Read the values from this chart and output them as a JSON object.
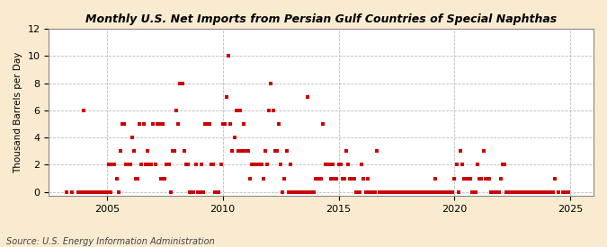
{
  "title": "Monthly U.S. Net Imports from Persian Gulf Countries of Special Naphthas",
  "ylabel": "Thousand Barrels per Day",
  "source": "Source: U.S. Energy Information Administration",
  "background_color": "#faebd0",
  "plot_background_color": "#ffffff",
  "marker_color": "#cc0000",
  "xlim": [
    2002.5,
    2026.0
  ],
  "ylim": [
    -0.3,
    12
  ],
  "yticks": [
    0,
    2,
    4,
    6,
    8,
    10,
    12
  ],
  "xticks": [
    2005,
    2010,
    2015,
    2020,
    2025
  ],
  "data_points": [
    [
      2003.25,
      0
    ],
    [
      2003.5,
      0
    ],
    [
      2003.75,
      0
    ],
    [
      2003.917,
      0
    ],
    [
      2004.0,
      6
    ],
    [
      2004.083,
      0
    ],
    [
      2004.167,
      0
    ],
    [
      2004.25,
      0
    ],
    [
      2004.333,
      0
    ],
    [
      2004.417,
      0
    ],
    [
      2004.5,
      0
    ],
    [
      2004.583,
      0
    ],
    [
      2004.667,
      0
    ],
    [
      2004.75,
      0
    ],
    [
      2004.833,
      0
    ],
    [
      2004.917,
      0
    ],
    [
      2005.0,
      0
    ],
    [
      2005.083,
      2
    ],
    [
      2005.167,
      0
    ],
    [
      2005.25,
      2
    ],
    [
      2005.333,
      2
    ],
    [
      2005.417,
      1
    ],
    [
      2005.5,
      0
    ],
    [
      2005.583,
      3
    ],
    [
      2005.667,
      5
    ],
    [
      2005.75,
      5
    ],
    [
      2005.833,
      2
    ],
    [
      2005.917,
      2
    ],
    [
      2006.0,
      2
    ],
    [
      2006.083,
      4
    ],
    [
      2006.167,
      3
    ],
    [
      2006.25,
      1
    ],
    [
      2006.333,
      1
    ],
    [
      2006.417,
      5
    ],
    [
      2006.5,
      2
    ],
    [
      2006.583,
      5
    ],
    [
      2006.667,
      2
    ],
    [
      2006.75,
      3
    ],
    [
      2006.833,
      2
    ],
    [
      2006.917,
      2
    ],
    [
      2007.0,
      5
    ],
    [
      2007.083,
      2
    ],
    [
      2007.167,
      5
    ],
    [
      2007.25,
      5
    ],
    [
      2007.333,
      1
    ],
    [
      2007.417,
      5
    ],
    [
      2007.5,
      1
    ],
    [
      2007.583,
      2
    ],
    [
      2007.667,
      2
    ],
    [
      2007.75,
      0
    ],
    [
      2007.833,
      3
    ],
    [
      2007.917,
      3
    ],
    [
      2008.0,
      6
    ],
    [
      2008.083,
      5
    ],
    [
      2008.167,
      8
    ],
    [
      2008.25,
      8
    ],
    [
      2008.333,
      3
    ],
    [
      2008.417,
      2
    ],
    [
      2008.5,
      2
    ],
    [
      2008.583,
      0
    ],
    [
      2008.667,
      0
    ],
    [
      2008.75,
      0
    ],
    [
      2008.833,
      2
    ],
    [
      2008.917,
      0
    ],
    [
      2009.0,
      0
    ],
    [
      2009.083,
      2
    ],
    [
      2009.167,
      0
    ],
    [
      2009.25,
      5
    ],
    [
      2009.333,
      5
    ],
    [
      2009.417,
      5
    ],
    [
      2009.5,
      2
    ],
    [
      2009.583,
      2
    ],
    [
      2009.667,
      0
    ],
    [
      2009.75,
      0
    ],
    [
      2009.833,
      0
    ],
    [
      2009.917,
      2
    ],
    [
      2010.0,
      5
    ],
    [
      2010.083,
      5
    ],
    [
      2010.167,
      7
    ],
    [
      2010.25,
      10
    ],
    [
      2010.333,
      5
    ],
    [
      2010.417,
      3
    ],
    [
      2010.5,
      4
    ],
    [
      2010.583,
      6
    ],
    [
      2010.667,
      3
    ],
    [
      2010.75,
      6
    ],
    [
      2010.833,
      3
    ],
    [
      2010.917,
      5
    ],
    [
      2011.0,
      3
    ],
    [
      2011.083,
      3
    ],
    [
      2011.167,
      1
    ],
    [
      2011.25,
      2
    ],
    [
      2011.333,
      2
    ],
    [
      2011.417,
      2
    ],
    [
      2011.5,
      2
    ],
    [
      2011.583,
      2
    ],
    [
      2011.667,
      2
    ],
    [
      2011.75,
      1
    ],
    [
      2011.833,
      3
    ],
    [
      2011.917,
      2
    ],
    [
      2012.0,
      6
    ],
    [
      2012.083,
      8
    ],
    [
      2012.167,
      6
    ],
    [
      2012.25,
      3
    ],
    [
      2012.333,
      3
    ],
    [
      2012.417,
      5
    ],
    [
      2012.5,
      2
    ],
    [
      2012.583,
      0
    ],
    [
      2012.667,
      1
    ],
    [
      2012.75,
      3
    ],
    [
      2012.833,
      0
    ],
    [
      2012.917,
      2
    ],
    [
      2013.0,
      0
    ],
    [
      2013.083,
      0
    ],
    [
      2013.167,
      0
    ],
    [
      2013.25,
      0
    ],
    [
      2013.333,
      0
    ],
    [
      2013.417,
      0
    ],
    [
      2013.5,
      0
    ],
    [
      2013.583,
      0
    ],
    [
      2013.667,
      7
    ],
    [
      2013.75,
      0
    ],
    [
      2013.833,
      0
    ],
    [
      2013.917,
      0
    ],
    [
      2014.0,
      1
    ],
    [
      2014.083,
      1
    ],
    [
      2014.167,
      1
    ],
    [
      2014.25,
      1
    ],
    [
      2014.333,
      5
    ],
    [
      2014.417,
      2
    ],
    [
      2014.5,
      2
    ],
    [
      2014.583,
      2
    ],
    [
      2014.667,
      1
    ],
    [
      2014.75,
      2
    ],
    [
      2014.833,
      1
    ],
    [
      2014.917,
      1
    ],
    [
      2015.0,
      2
    ],
    [
      2015.083,
      2
    ],
    [
      2015.167,
      1
    ],
    [
      2015.25,
      1
    ],
    [
      2015.333,
      3
    ],
    [
      2015.417,
      2
    ],
    [
      2015.5,
      1
    ],
    [
      2015.583,
      1
    ],
    [
      2015.667,
      1
    ],
    [
      2015.75,
      0
    ],
    [
      2015.833,
      0
    ],
    [
      2015.917,
      0
    ],
    [
      2016.0,
      2
    ],
    [
      2016.083,
      1
    ],
    [
      2016.167,
      0
    ],
    [
      2016.25,
      1
    ],
    [
      2016.333,
      0
    ],
    [
      2016.417,
      0
    ],
    [
      2016.5,
      0
    ],
    [
      2016.583,
      0
    ],
    [
      2016.667,
      3
    ],
    [
      2016.75,
      0
    ],
    [
      2016.833,
      0
    ],
    [
      2016.917,
      0
    ],
    [
      2017.0,
      0
    ],
    [
      2017.083,
      0
    ],
    [
      2017.167,
      0
    ],
    [
      2017.25,
      0
    ],
    [
      2017.333,
      0
    ],
    [
      2017.417,
      0
    ],
    [
      2017.5,
      0
    ],
    [
      2017.583,
      0
    ],
    [
      2017.667,
      0
    ],
    [
      2017.75,
      0
    ],
    [
      2017.833,
      0
    ],
    [
      2017.917,
      0
    ],
    [
      2018.0,
      0
    ],
    [
      2018.083,
      0
    ],
    [
      2018.167,
      0
    ],
    [
      2018.25,
      0
    ],
    [
      2018.333,
      0
    ],
    [
      2018.417,
      0
    ],
    [
      2018.5,
      0
    ],
    [
      2018.583,
      0
    ],
    [
      2018.667,
      0
    ],
    [
      2018.75,
      0
    ],
    [
      2018.833,
      0
    ],
    [
      2018.917,
      0
    ],
    [
      2019.0,
      0
    ],
    [
      2019.083,
      0
    ],
    [
      2019.167,
      1
    ],
    [
      2019.25,
      0
    ],
    [
      2019.333,
      0
    ],
    [
      2019.417,
      0
    ],
    [
      2019.5,
      0
    ],
    [
      2019.583,
      0
    ],
    [
      2019.667,
      0
    ],
    [
      2019.75,
      0
    ],
    [
      2019.833,
      0
    ],
    [
      2019.917,
      0
    ],
    [
      2020.0,
      1
    ],
    [
      2020.083,
      2
    ],
    [
      2020.167,
      0
    ],
    [
      2020.25,
      3
    ],
    [
      2020.333,
      2
    ],
    [
      2020.417,
      1
    ],
    [
      2020.5,
      1
    ],
    [
      2020.583,
      1
    ],
    [
      2020.667,
      1
    ],
    [
      2020.75,
      0
    ],
    [
      2020.833,
      0
    ],
    [
      2020.917,
      0
    ],
    [
      2021.0,
      2
    ],
    [
      2021.083,
      1
    ],
    [
      2021.167,
      1
    ],
    [
      2021.25,
      3
    ],
    [
      2021.333,
      1
    ],
    [
      2021.417,
      1
    ],
    [
      2021.5,
      1
    ],
    [
      2021.583,
      0
    ],
    [
      2021.667,
      0
    ],
    [
      2021.75,
      0
    ],
    [
      2021.833,
      0
    ],
    [
      2021.917,
      0
    ],
    [
      2022.0,
      1
    ],
    [
      2022.083,
      2
    ],
    [
      2022.167,
      2
    ],
    [
      2022.25,
      0
    ],
    [
      2022.333,
      0
    ],
    [
      2022.417,
      0
    ],
    [
      2022.5,
      0
    ],
    [
      2022.583,
      0
    ],
    [
      2022.667,
      0
    ],
    [
      2022.75,
      0
    ],
    [
      2022.833,
      0
    ],
    [
      2022.917,
      0
    ],
    [
      2023.0,
      0
    ],
    [
      2023.083,
      0
    ],
    [
      2023.167,
      0
    ],
    [
      2023.25,
      0
    ],
    [
      2023.333,
      0
    ],
    [
      2023.417,
      0
    ],
    [
      2023.5,
      0
    ],
    [
      2023.583,
      0
    ],
    [
      2023.667,
      0
    ],
    [
      2023.75,
      0
    ],
    [
      2023.833,
      0
    ],
    [
      2023.917,
      0
    ],
    [
      2024.0,
      0
    ],
    [
      2024.083,
      0
    ],
    [
      2024.167,
      0
    ],
    [
      2024.25,
      0
    ],
    [
      2024.333,
      1
    ],
    [
      2024.5,
      0
    ],
    [
      2024.667,
      0
    ],
    [
      2024.75,
      0
    ],
    [
      2024.833,
      0
    ],
    [
      2024.917,
      0
    ]
  ]
}
